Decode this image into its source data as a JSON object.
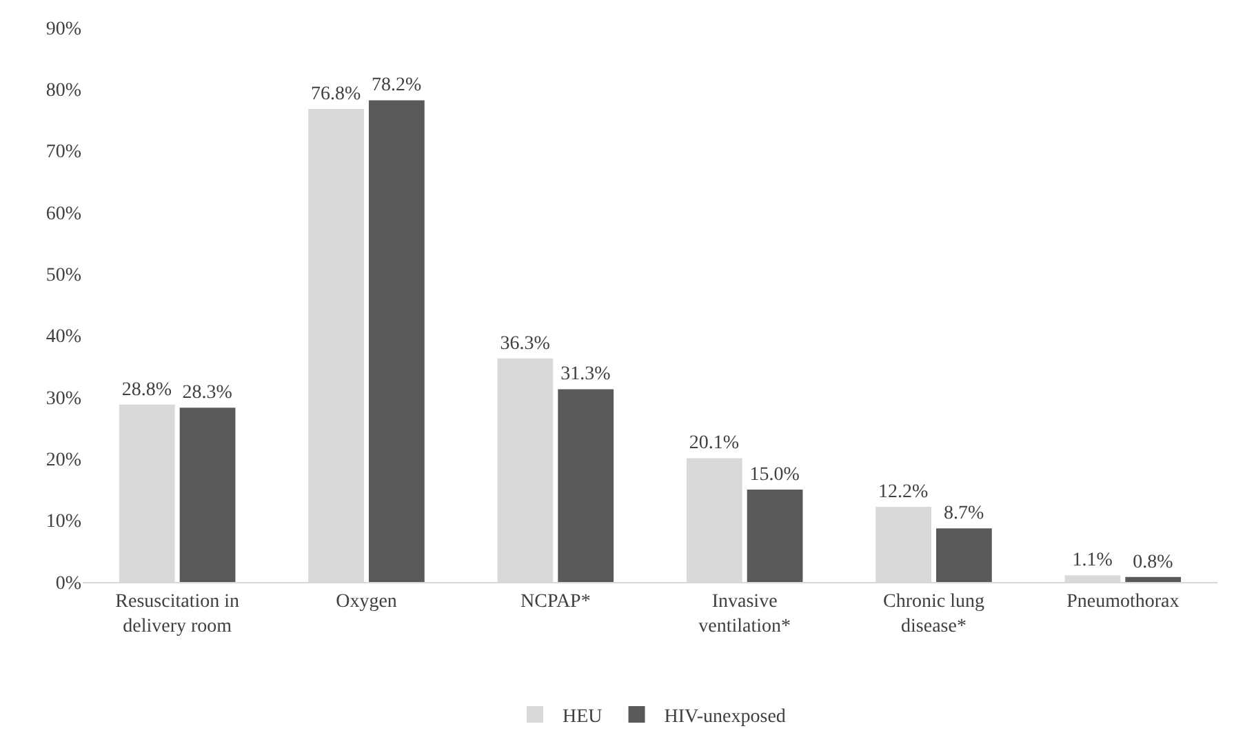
{
  "chart_data": {
    "type": "bar",
    "categories": [
      "Resuscitation in delivery room",
      "Oxygen",
      "NCPAP*",
      "Invasive ventilation*",
      "Chronic lung disease*",
      "Pneumothorax"
    ],
    "series": [
      {
        "name": "HEU",
        "color": "#d9d9d9",
        "values": [
          28.8,
          76.8,
          36.3,
          20.1,
          12.2,
          1.1
        ],
        "value_labels": [
          "28.8%",
          "76.8%",
          "36.3%",
          "20.1%",
          "12.2%",
          "1.1%"
        ]
      },
      {
        "name": "HIV-unexposed",
        "color": "#595959",
        "values": [
          28.3,
          78.2,
          31.3,
          15.0,
          8.7,
          0.8
        ],
        "value_labels": [
          "28.3%",
          "78.2%",
          "31.3%",
          "15.0%",
          "8.7%",
          "0.8%"
        ]
      }
    ],
    "ylim": [
      0,
      90
    ],
    "yticks": [
      {
        "value": 0,
        "label": "0%"
      },
      {
        "value": 10,
        "label": "10%"
      },
      {
        "value": 20,
        "label": "20%"
      },
      {
        "value": 30,
        "label": "30%"
      },
      {
        "value": 40,
        "label": "40%"
      },
      {
        "value": 50,
        "label": "50%"
      },
      {
        "value": 60,
        "label": "60%"
      },
      {
        "value": 70,
        "label": "70%"
      },
      {
        "value": 80,
        "label": "80%"
      },
      {
        "value": 90,
        "label": "90%"
      }
    ],
    "grid": false,
    "legend": "bottom"
  }
}
